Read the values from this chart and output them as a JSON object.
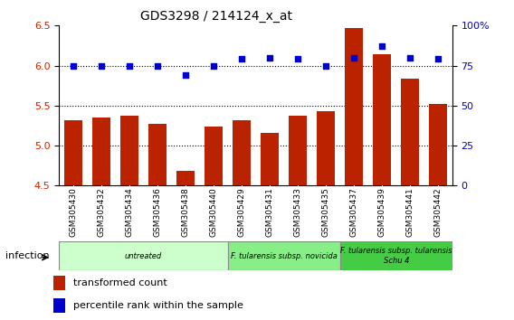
{
  "title": "GDS3298 / 214124_x_at",
  "samples": [
    "GSM305430",
    "GSM305432",
    "GSM305434",
    "GSM305436",
    "GSM305438",
    "GSM305440",
    "GSM305429",
    "GSM305431",
    "GSM305433",
    "GSM305435",
    "GSM305437",
    "GSM305439",
    "GSM305441",
    "GSM305442"
  ],
  "bar_values": [
    5.32,
    5.35,
    5.37,
    5.27,
    4.68,
    5.24,
    5.32,
    5.16,
    5.37,
    5.43,
    6.47,
    6.14,
    5.84,
    5.52
  ],
  "dot_values": [
    75,
    75,
    75,
    75,
    69,
    75,
    79,
    80,
    79,
    75,
    80,
    87,
    80,
    79
  ],
  "ylim_left": [
    4.5,
    6.5
  ],
  "ylim_right": [
    0,
    100
  ],
  "yticks_left": [
    4.5,
    5.0,
    5.5,
    6.0,
    6.5
  ],
  "yticks_right": [
    0,
    25,
    50,
    75,
    100
  ],
  "ytick_labels_right": [
    "0",
    "25",
    "50",
    "75",
    "100%"
  ],
  "bar_color": "#bb2200",
  "dot_color": "#0000cc",
  "dotted_line_values": [
    5.0,
    5.5,
    6.0
  ],
  "groups": [
    {
      "label": "untreated",
      "start": 0,
      "end": 5,
      "color": "#ccffcc"
    },
    {
      "label": "F. tularensis subsp. novicida",
      "start": 6,
      "end": 9,
      "color": "#88ee88"
    },
    {
      "label": "F. tularensis subsp. tularensis\nSchu 4",
      "start": 10,
      "end": 13,
      "color": "#44cc44"
    }
  ],
  "infection_label": "infection",
  "legend_bar_label": "transformed count",
  "legend_dot_label": "percentile rank within the sample",
  "bg_color": "#ffffff",
  "plot_bg_color": "#ffffff",
  "tick_label_color_left": "#cc2200",
  "tick_label_color_right": "#0000cc",
  "bar_bottom": 4.5,
  "sample_box_color": "#cccccc",
  "sample_box_divider": "#ffffff"
}
